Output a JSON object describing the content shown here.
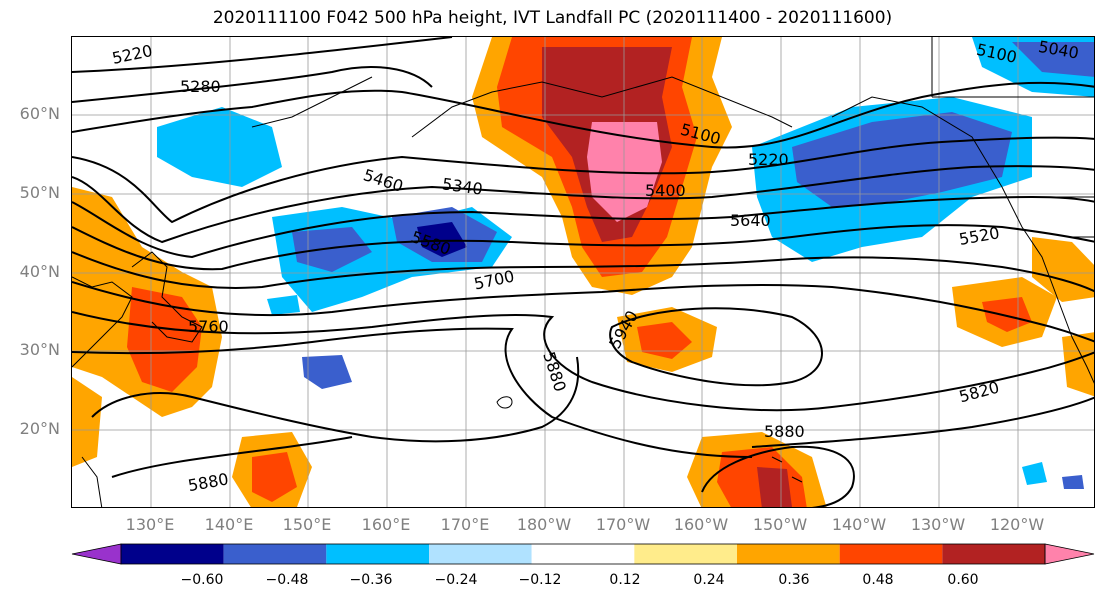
{
  "title": "2020111100 F042 500 hPa height, IVT Landfall PC (2020111400 - 2020111600)",
  "latitude_labels": [
    "60°N",
    "50°N",
    "40°N",
    "30°N",
    "20°N"
  ],
  "longitude_labels": [
    "130°E",
    "140°E",
    "150°E",
    "160°E",
    "170°E",
    "180°W",
    "170°W",
    "160°W",
    "150°W",
    "140°W",
    "130°W",
    "120°W"
  ],
  "contour_labels": [
    "5220",
    "5280",
    "5100",
    "5220",
    "5460",
    "5340",
    "5400",
    "5640",
    "5580",
    "5700",
    "5520",
    "5760",
    "5940",
    "5880",
    "5820",
    "5880",
    "5880",
    "5100",
    "5040"
  ],
  "colorbar": {
    "tick_labels": [
      "−0.60",
      "−0.48",
      "−0.36",
      "−0.24",
      "−0.12",
      "0.12",
      "0.24",
      "0.36",
      "0.48",
      "0.60"
    ],
    "colors": [
      "#9932cc",
      "#00008b",
      "#3a5fcd",
      "#00bfff",
      "#b0e2ff",
      "#ffffff",
      "#ffec8b",
      "#ffa500",
      "#ff4500",
      "#b22222",
      "#ff82ab"
    ]
  }
}
